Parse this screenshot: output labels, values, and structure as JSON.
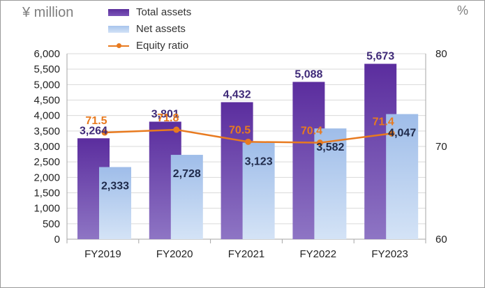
{
  "chart_data": {
    "type": "bar",
    "categories": [
      "FY2019",
      "FY2020",
      "FY2021",
      "FY2022",
      "FY2023"
    ],
    "series": [
      {
        "name": "Total assets",
        "kind": "bar",
        "axis": "left",
        "color": "#6a3fae",
        "values": [
          3264,
          3801,
          4432,
          5088,
          5673
        ],
        "labels": [
          "3,264",
          "3,801",
          "4,432",
          "5,088",
          "5,673"
        ]
      },
      {
        "name": "Net assets",
        "kind": "bar",
        "axis": "left",
        "color": "#a7c4ec",
        "values": [
          2333,
          2728,
          3123,
          3582,
          4047
        ],
        "labels": [
          "2,333",
          "2,728",
          "3,123",
          "3,582",
          "4,047"
        ]
      },
      {
        "name": "Equity ratio",
        "kind": "line",
        "axis": "right",
        "color": "#e87a1f",
        "values": [
          71.5,
          71.8,
          70.5,
          70.4,
          71.4
        ],
        "labels": [
          "71.5",
          "71.8",
          "70.5",
          "70.4",
          "71.4"
        ]
      }
    ],
    "ylabel": "¥ million",
    "y2label": "%",
    "ylim": [
      0,
      6000
    ],
    "y2lim": [
      60,
      80
    ],
    "yticks": [
      "0",
      "500",
      "1,000",
      "1,500",
      "2,000",
      "2,500",
      "3,000",
      "3,500",
      "4,000",
      "4,500",
      "5,000",
      "5,500",
      "6,000"
    ],
    "yticks_values": [
      0,
      500,
      1000,
      1500,
      2000,
      2500,
      3000,
      3500,
      4000,
      4500,
      5000,
      5500,
      6000
    ],
    "y2ticks": [
      "60",
      "70",
      "80"
    ],
    "y2ticks_values": [
      60,
      70,
      80
    ],
    "legend_position": "top",
    "grid": true
  }
}
